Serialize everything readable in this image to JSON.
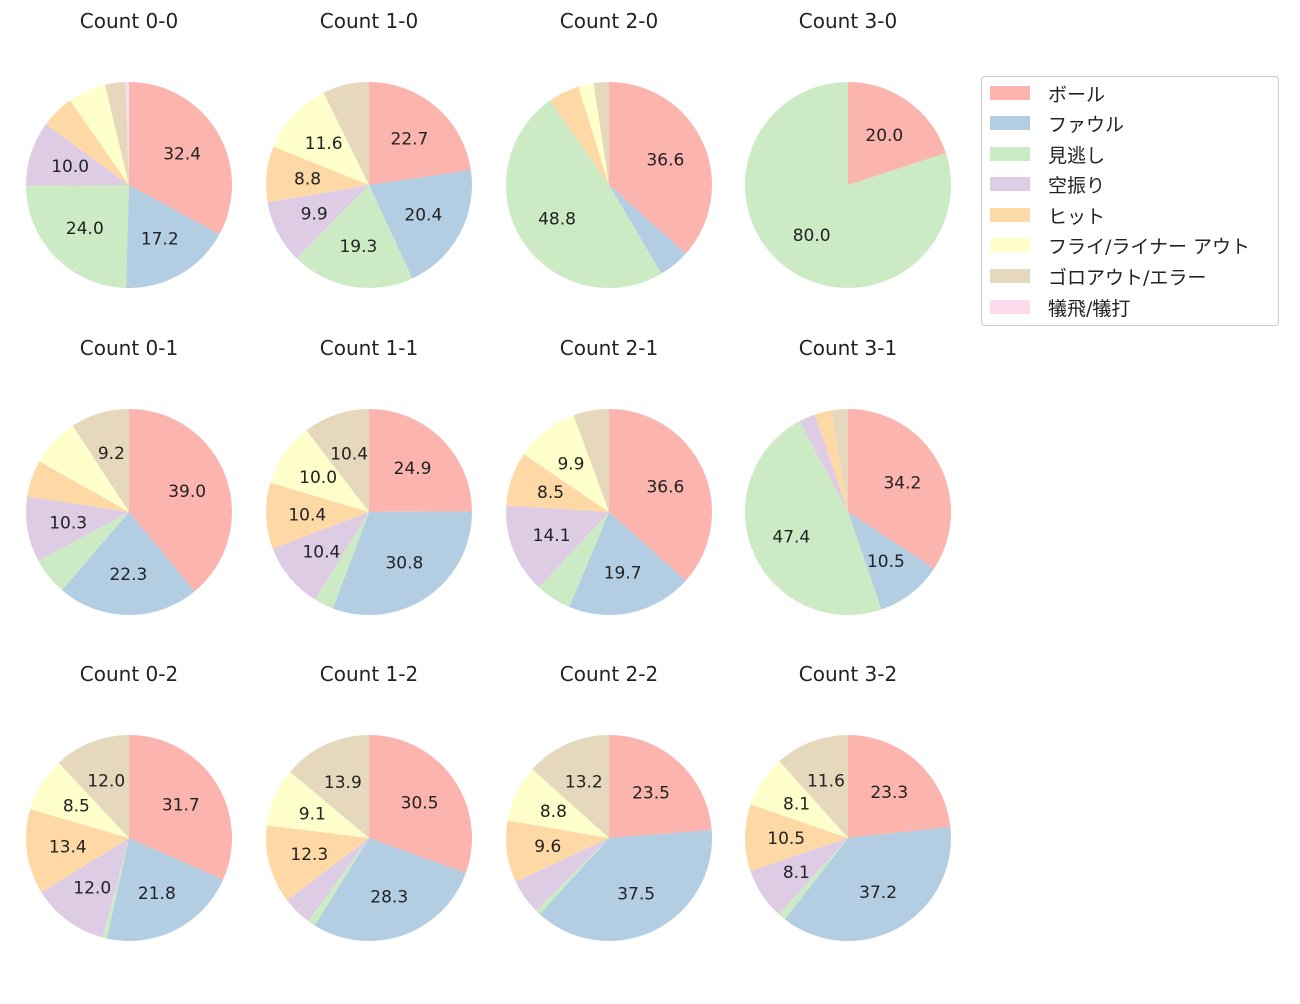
{
  "colors": [
    "#fbb4ae",
    "#b3cde3",
    "#ccebc5",
    "#decbe4",
    "#fed9a6",
    "#ffffcc",
    "#e5d8bd",
    "#fddaec"
  ],
  "legend": {
    "placement": "top-right",
    "items": [
      "ボール",
      "ファウル",
      "見逃し",
      "空振り",
      "ヒット",
      "フライ/ライナー アウト",
      "ゴロアウト/エラー",
      "犠飛/犠打"
    ]
  },
  "chart_data": [
    {
      "type": "pie",
      "title": "Count 0-0",
      "values": [
        32.4,
        17.2,
        24.0,
        10.0,
        5.2,
        5.8,
        3.2,
        0.5
      ],
      "labels": [
        "32.4",
        "17.2",
        "24.0",
        "10.0",
        "",
        "",
        "",
        ""
      ]
    },
    {
      "type": "pie",
      "title": "Count 1-0",
      "values": [
        22.7,
        20.4,
        19.3,
        9.9,
        8.8,
        11.6,
        7.3,
        0.0
      ],
      "labels": [
        "22.7",
        "20.4",
        "19.3",
        "9.9",
        "8.8",
        "11.6",
        "",
        ""
      ]
    },
    {
      "type": "pie",
      "title": "Count 2-0",
      "values": [
        36.6,
        4.9,
        48.8,
        0.0,
        4.9,
        2.4,
        2.4,
        0.0
      ],
      "labels": [
        "36.6",
        "",
        "48.8",
        "",
        "",
        "",
        "",
        ""
      ]
    },
    {
      "type": "pie",
      "title": "Count 3-0",
      "values": [
        20.0,
        0.0,
        80.0,
        0.0,
        0.0,
        0.0,
        0.0,
        0.0
      ],
      "labels": [
        "20.0",
        "",
        "80.0",
        "",
        "",
        "",
        "",
        ""
      ]
    },
    {
      "type": "pie",
      "title": "Count 0-1",
      "values": [
        39.0,
        22.3,
        5.8,
        10.3,
        5.8,
        7.6,
        9.2,
        0.0
      ],
      "labels": [
        "39.0",
        "22.3",
        "",
        "10.3",
        "",
        "",
        "9.2",
        ""
      ]
    },
    {
      "type": "pie",
      "title": "Count 1-1",
      "values": [
        24.9,
        30.8,
        3.1,
        10.4,
        10.4,
        10.0,
        10.4,
        0.0
      ],
      "labels": [
        "24.9",
        "30.8",
        "",
        "10.4",
        "10.4",
        "10.0",
        "10.4",
        ""
      ]
    },
    {
      "type": "pie",
      "title": "Count 2-1",
      "values": [
        36.6,
        19.7,
        5.6,
        14.1,
        8.5,
        9.9,
        5.6,
        0.0
      ],
      "labels": [
        "36.6",
        "19.7",
        "",
        "14.1",
        "8.5",
        "9.9",
        "",
        ""
      ]
    },
    {
      "type": "pie",
      "title": "Count 3-1",
      "values": [
        34.2,
        10.5,
        47.4,
        2.6,
        2.6,
        0.0,
        2.6,
        0.0
      ],
      "labels": [
        "34.2",
        "10.5",
        "47.4",
        "",
        "",
        "",
        "",
        ""
      ]
    },
    {
      "type": "pie",
      "title": "Count 0-2",
      "values": [
        31.7,
        21.8,
        0.7,
        12.0,
        13.4,
        8.5,
        12.0,
        0.0
      ],
      "labels": [
        "31.7",
        "21.8",
        "",
        "12.0",
        "13.4",
        "8.5",
        "12.0",
        ""
      ]
    },
    {
      "type": "pie",
      "title": "Count 1-2",
      "values": [
        30.5,
        28.3,
        1.2,
        4.6,
        12.3,
        9.1,
        13.9,
        0.0
      ],
      "labels": [
        "30.5",
        "28.3",
        "",
        "",
        "12.3",
        "9.1",
        "13.9",
        ""
      ]
    },
    {
      "type": "pie",
      "title": "Count 2-2",
      "values": [
        23.5,
        37.5,
        0.8,
        5.4,
        9.6,
        8.8,
        13.2,
        0.0
      ],
      "labels": [
        "23.5",
        "37.5",
        "",
        "",
        "9.6",
        "8.8",
        "13.2",
        ""
      ]
    },
    {
      "type": "pie",
      "title": "Count 3-2",
      "values": [
        23.3,
        37.2,
        1.2,
        8.1,
        10.5,
        8.1,
        11.6,
        0.0
      ],
      "labels": [
        "23.3",
        "37.2",
        "",
        "8.1",
        "10.5",
        "8.1",
        "11.6",
        ""
      ]
    }
  ]
}
